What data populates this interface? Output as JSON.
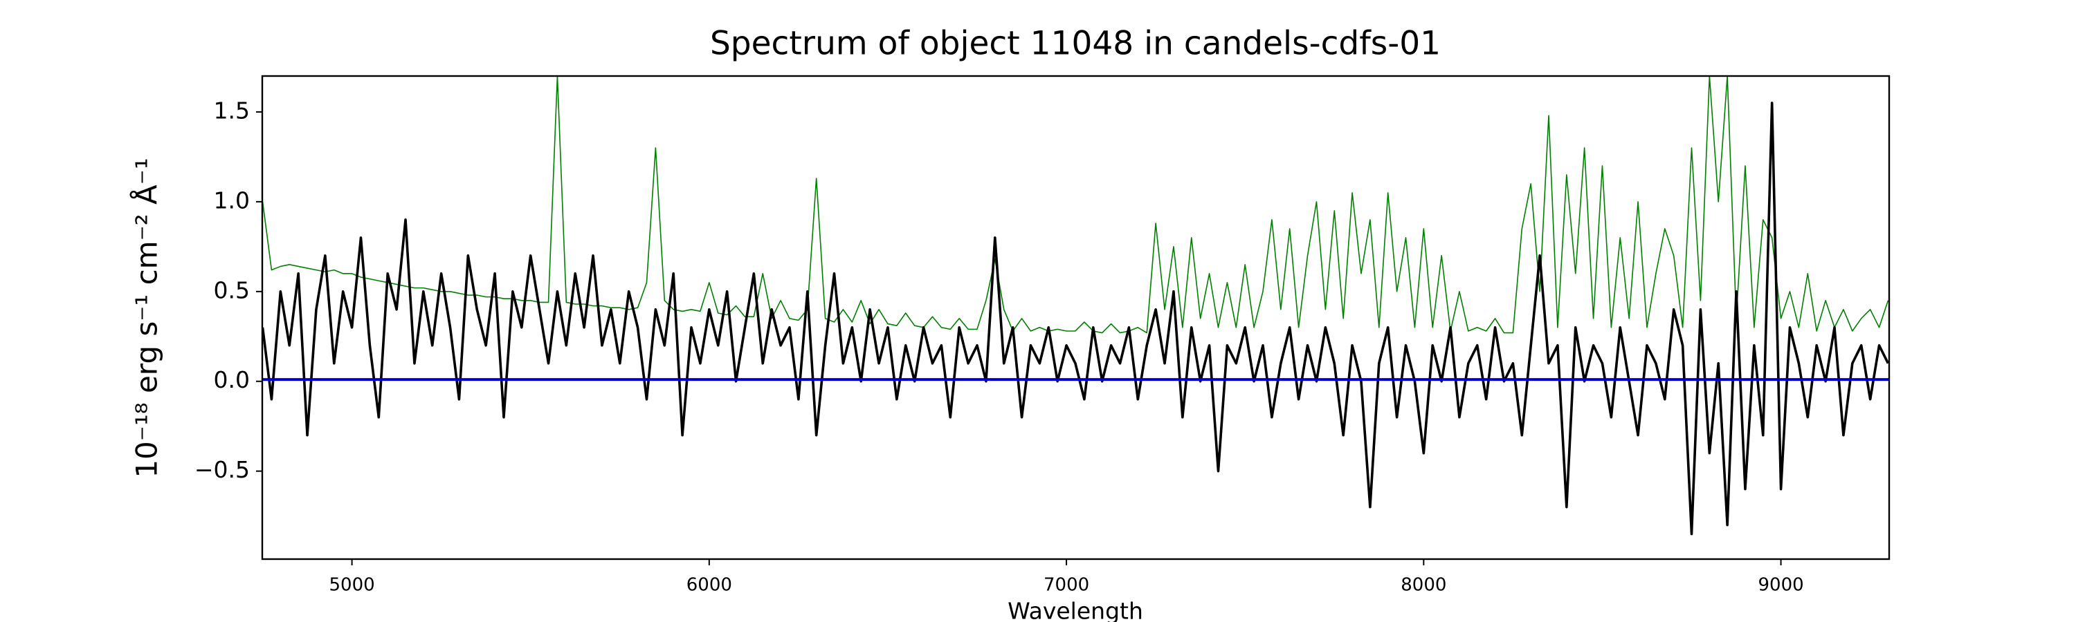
{
  "chart_data": {
    "type": "line",
    "title": "Spectrum of object 11048 in candels-cdfs-01",
    "x_label": "Wavelength",
    "y_label": "10⁻¹⁸ erg s⁻¹ cm⁻² Å⁻¹",
    "xlim": [
      4749,
      9303
    ],
    "ylim": [
      -0.99,
      1.7
    ],
    "xticks": [
      5000,
      6000,
      7000,
      8000,
      9000
    ],
    "yticks": [
      {
        "value": -0.5,
        "label": "−0.5"
      },
      {
        "value": 0,
        "label": "0.0"
      },
      0.5,
      {
        "value": 1,
        "label": "1.0"
      },
      1.5
    ],
    "grid": false,
    "x": [
      4750,
      4775,
      4800,
      4825,
      4850,
      4875,
      4900,
      4925,
      4950,
      4975,
      5000,
      5025,
      5050,
      5075,
      5100,
      5125,
      5150,
      5175,
      5200,
      5225,
      5250,
      5275,
      5300,
      5325,
      5350,
      5375,
      5400,
      5425,
      5450,
      5475,
      5500,
      5525,
      5550,
      5575,
      5600,
      5625,
      5650,
      5675,
      5700,
      5725,
      5750,
      5775,
      5800,
      5825,
      5850,
      5875,
      5900,
      5925,
      5950,
      5975,
      6000,
      6025,
      6050,
      6075,
      6100,
      6125,
      6150,
      6175,
      6200,
      6225,
      6250,
      6275,
      6300,
      6325,
      6350,
      6375,
      6400,
      6425,
      6450,
      6475,
      6500,
      6525,
      6550,
      6575,
      6600,
      6625,
      6650,
      6675,
      6700,
      6725,
      6750,
      6775,
      6800,
      6825,
      6850,
      6875,
      6900,
      6925,
      6950,
      6975,
      7000,
      7025,
      7050,
      7075,
      7100,
      7125,
      7150,
      7175,
      7200,
      7225,
      7250,
      7275,
      7300,
      7325,
      7350,
      7375,
      7400,
      7425,
      7450,
      7475,
      7500,
      7525,
      7550,
      7575,
      7600,
      7625,
      7650,
      7675,
      7700,
      7725,
      7750,
      7775,
      7800,
      7825,
      7850,
      7875,
      7900,
      7925,
      7950,
      7975,
      8000,
      8025,
      8050,
      8075,
      8100,
      8125,
      8150,
      8175,
      8200,
      8225,
      8250,
      8275,
      8300,
      8325,
      8350,
      8375,
      8400,
      8425,
      8450,
      8475,
      8500,
      8525,
      8550,
      8575,
      8600,
      8625,
      8650,
      8675,
      8700,
      8725,
      8750,
      8775,
      8800,
      8825,
      8850,
      8875,
      8900,
      8925,
      8950,
      8975,
      9000,
      9025,
      9050,
      9075,
      9100,
      9125,
      9150,
      9175,
      9200,
      9225,
      9250,
      9275,
      9300
    ],
    "series": [
      {
        "color": "#008000",
        "width": 1.6,
        "values": [
          1.0,
          0.62,
          0.64,
          0.65,
          0.64,
          0.63,
          0.62,
          0.61,
          0.62,
          0.6,
          0.6,
          0.58,
          0.57,
          0.56,
          0.55,
          0.54,
          0.53,
          0.52,
          0.52,
          0.51,
          0.5,
          0.5,
          0.49,
          0.48,
          0.48,
          0.47,
          0.47,
          0.46,
          0.46,
          0.45,
          0.45,
          0.44,
          0.44,
          1.7,
          0.44,
          0.43,
          0.43,
          0.42,
          0.42,
          0.41,
          0.41,
          0.4,
          0.41,
          0.55,
          1.3,
          0.45,
          0.4,
          0.39,
          0.4,
          0.39,
          0.55,
          0.38,
          0.37,
          0.42,
          0.36,
          0.36,
          0.6,
          0.35,
          0.45,
          0.35,
          0.34,
          0.4,
          1.13,
          0.35,
          0.33,
          0.4,
          0.33,
          0.45,
          0.32,
          0.4,
          0.32,
          0.31,
          0.38,
          0.31,
          0.3,
          0.36,
          0.3,
          0.29,
          0.35,
          0.29,
          0.29,
          0.45,
          0.68,
          0.4,
          0.28,
          0.35,
          0.28,
          0.3,
          0.28,
          0.29,
          0.28,
          0.28,
          0.33,
          0.28,
          0.27,
          0.32,
          0.27,
          0.28,
          0.3,
          0.27,
          0.88,
          0.4,
          0.75,
          0.3,
          0.8,
          0.35,
          0.6,
          0.3,
          0.55,
          0.3,
          0.65,
          0.3,
          0.5,
          0.9,
          0.4,
          0.85,
          0.3,
          0.7,
          1.0,
          0.4,
          0.95,
          0.35,
          1.05,
          0.6,
          0.9,
          0.3,
          1.05,
          0.5,
          0.8,
          0.3,
          0.85,
          0.3,
          0.7,
          0.28,
          0.5,
          0.28,
          0.3,
          0.28,
          0.35,
          0.27,
          0.27,
          0.85,
          1.1,
          0.5,
          1.48,
          0.3,
          1.15,
          0.6,
          1.3,
          0.35,
          1.2,
          0.3,
          0.8,
          0.35,
          1.0,
          0.3,
          0.6,
          0.85,
          0.7,
          0.3,
          1.3,
          0.45,
          1.7,
          1.0,
          1.7,
          0.35,
          1.2,
          0.3,
          0.9,
          0.8,
          0.35,
          0.5,
          0.3,
          0.6,
          0.28,
          0.45,
          0.3,
          0.4,
          0.28,
          0.35,
          0.4,
          0.3,
          0.45
        ]
      },
      {
        "color": "#000000",
        "width": 3.6,
        "values": [
          0.3,
          -0.1,
          0.5,
          0.2,
          0.6,
          -0.3,
          0.4,
          0.7,
          0.1,
          0.5,
          0.3,
          0.8,
          0.2,
          -0.2,
          0.6,
          0.4,
          0.9,
          0.1,
          0.5,
          0.2,
          0.6,
          0.3,
          -0.1,
          0.7,
          0.4,
          0.2,
          0.6,
          -0.2,
          0.5,
          0.3,
          0.7,
          0.4,
          0.1,
          0.5,
          0.2,
          0.6,
          0.3,
          0.7,
          0.2,
          0.4,
          0.1,
          0.5,
          0.3,
          -0.1,
          0.4,
          0.2,
          0.6,
          -0.3,
          0.3,
          0.1,
          0.4,
          0.2,
          0.5,
          0.0,
          0.3,
          0.6,
          0.1,
          0.4,
          0.2,
          0.3,
          -0.1,
          0.5,
          -0.3,
          0.2,
          0.6,
          0.1,
          0.3,
          0.0,
          0.4,
          0.1,
          0.3,
          -0.1,
          0.2,
          0.0,
          0.3,
          0.1,
          0.2,
          -0.2,
          0.3,
          0.1,
          0.2,
          0.0,
          0.8,
          0.1,
          0.3,
          -0.2,
          0.2,
          0.1,
          0.3,
          0.0,
          0.2,
          0.1,
          -0.1,
          0.3,
          0.0,
          0.2,
          0.1,
          0.3,
          -0.1,
          0.2,
          0.4,
          0.1,
          0.5,
          -0.2,
          0.3,
          0.0,
          0.2,
          -0.5,
          0.2,
          0.1,
          0.3,
          0.0,
          0.2,
          -0.2,
          0.1,
          0.3,
          -0.1,
          0.2,
          0.0,
          0.3,
          0.1,
          -0.3,
          0.2,
          0.0,
          -0.7,
          0.1,
          0.3,
          -0.2,
          0.2,
          0.0,
          -0.4,
          0.2,
          0.0,
          0.3,
          -0.2,
          0.1,
          0.2,
          -0.1,
          0.3,
          0.0,
          0.1,
          -0.3,
          0.2,
          0.7,
          0.1,
          0.2,
          -0.7,
          0.3,
          0.0,
          0.2,
          0.1,
          -0.2,
          0.3,
          0.0,
          -0.3,
          0.2,
          0.1,
          -0.1,
          0.4,
          0.2,
          -0.85,
          0.4,
          -0.4,
          0.1,
          -0.8,
          0.5,
          -0.6,
          0.2,
          -0.3,
          1.55,
          -0.6,
          0.3,
          0.1,
          -0.2,
          0.2,
          0.0,
          0.3,
          -0.3,
          0.1,
          0.2,
          -0.1,
          0.2,
          0.1
        ]
      },
      {
        "color": "#0000cc",
        "width": 4,
        "x": [
          4749,
          9303
        ],
        "values": [
          0.01,
          0.01
        ]
      }
    ]
  }
}
